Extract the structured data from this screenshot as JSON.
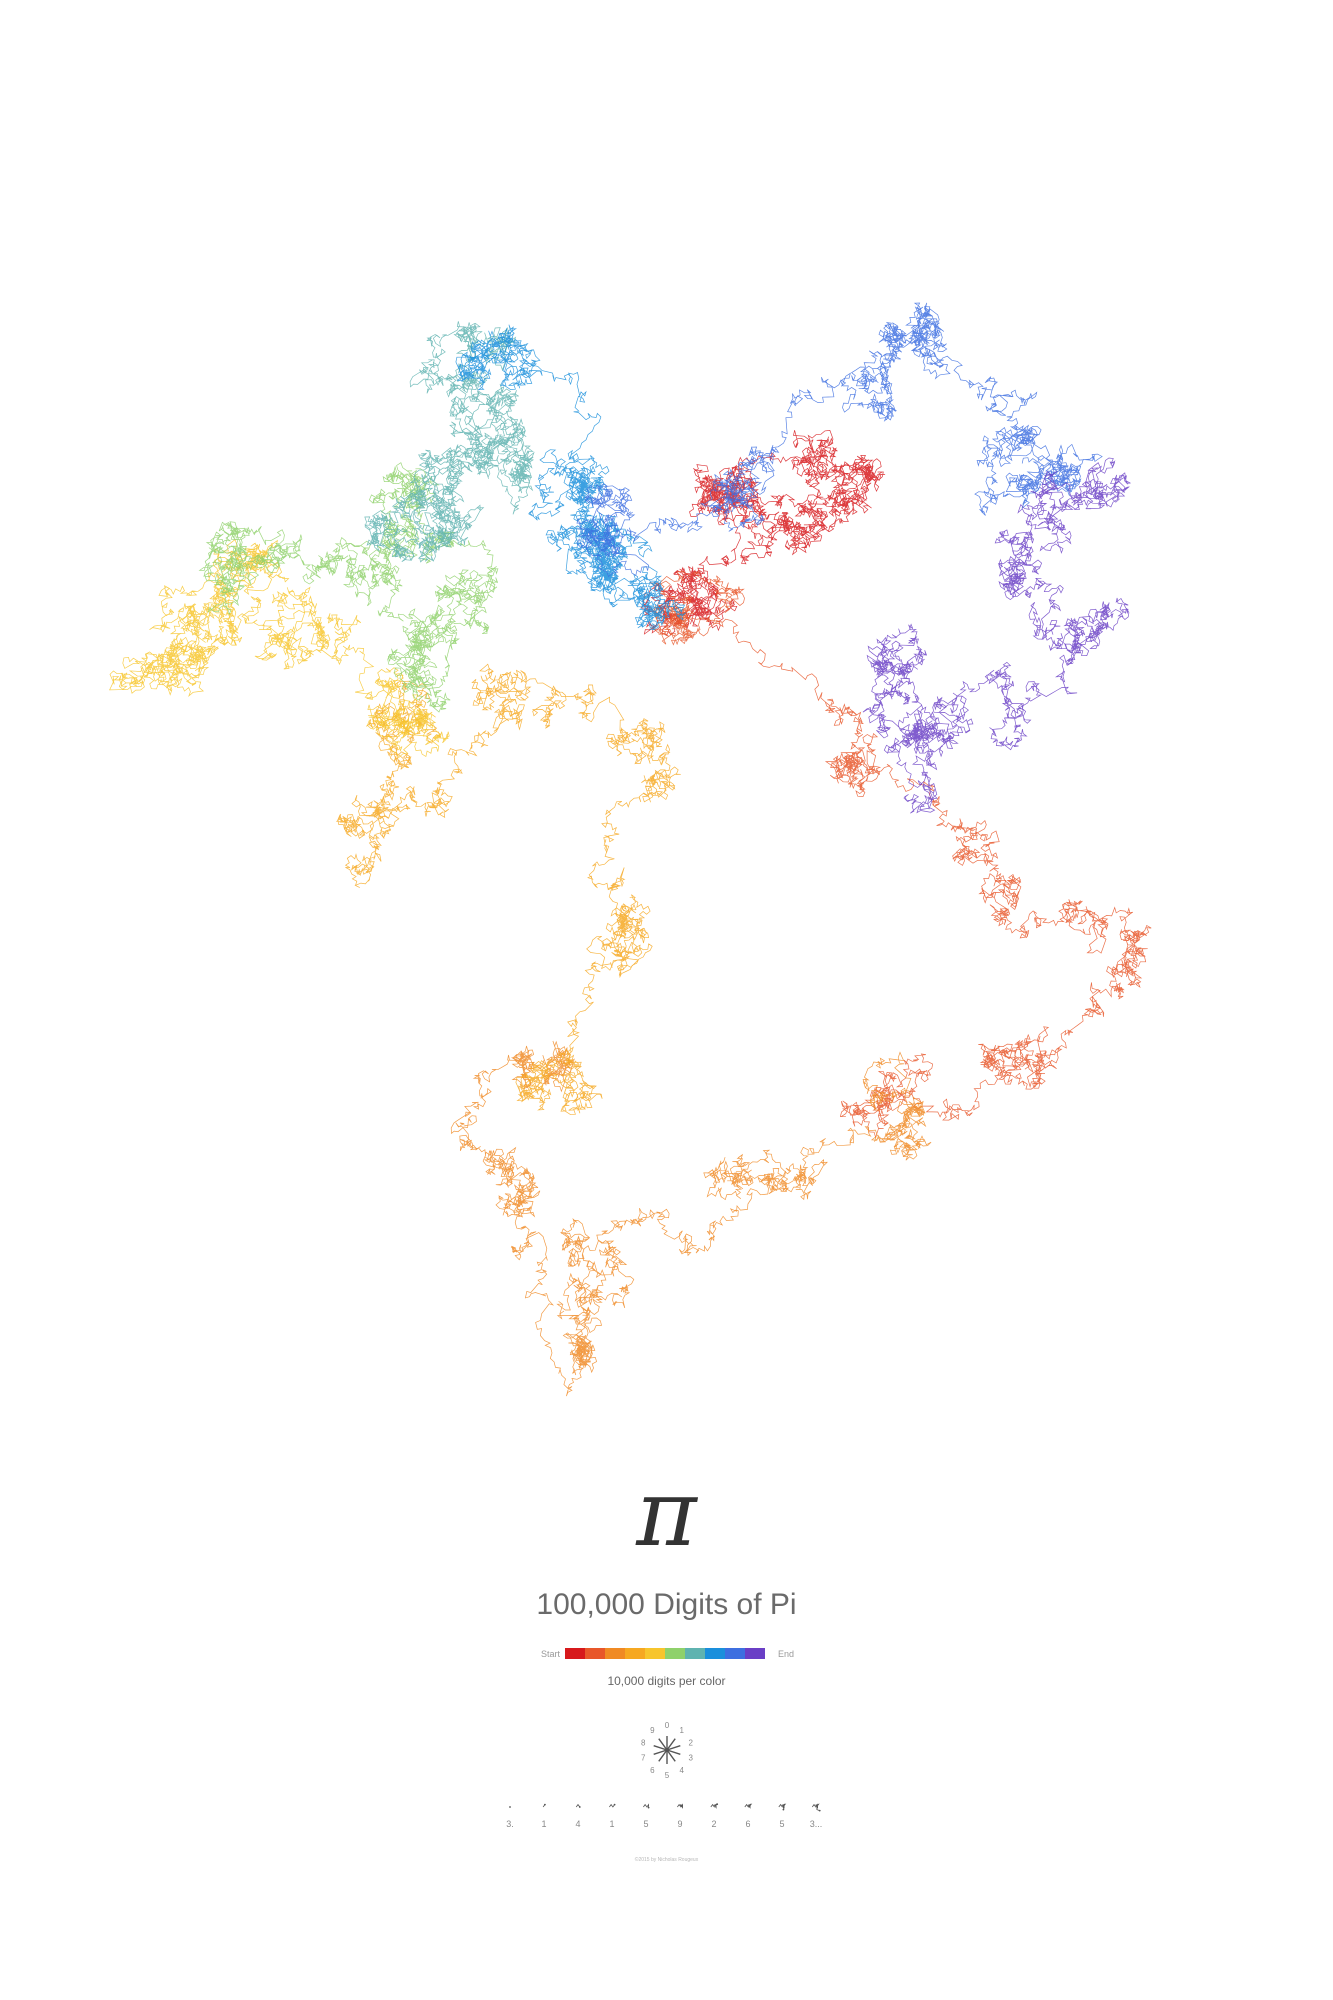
{
  "poster": {
    "symbol": "π",
    "title": "100,000 Digits of Pi",
    "credit": "©2015 by Nicholas Rougeux"
  },
  "legend": {
    "start_label": "Start",
    "end_label": "End",
    "caption": "10,000 digits per color",
    "colors": [
      "#d7191c",
      "#e8572a",
      "#f08a24",
      "#f6a821",
      "#f7c52c",
      "#8fd16b",
      "#5fb3b0",
      "#1a8fdc",
      "#3d6fe0",
      "#6a3fc6"
    ]
  },
  "compass": {
    "digits": [
      "0",
      "1",
      "2",
      "3",
      "4",
      "5",
      "6",
      "7",
      "8",
      "9"
    ]
  },
  "digit_sequence": [
    "3.",
    "1",
    "4",
    "1",
    "5",
    "9",
    "2",
    "6",
    "5",
    "3..."
  ],
  "walk": {
    "total_digits": 100000,
    "digits_per_color": 10000
  }
}
